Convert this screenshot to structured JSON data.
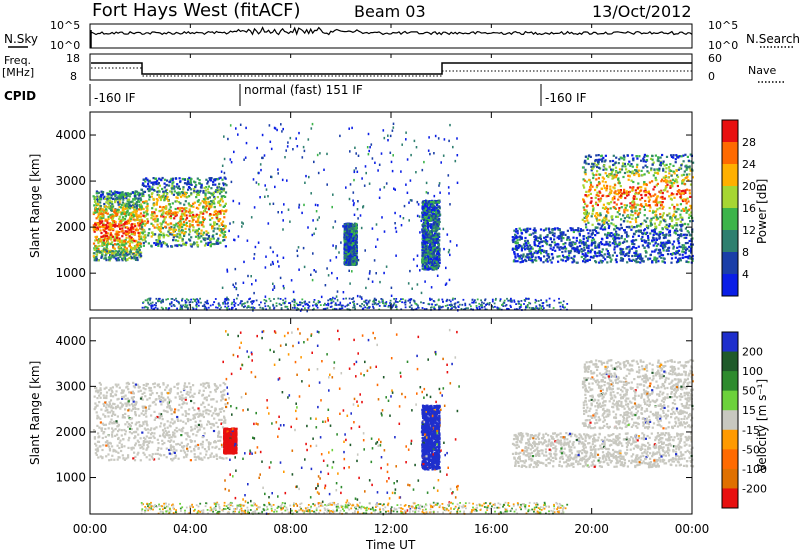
{
  "header": {
    "station": "Fort Hays West (fitACF)",
    "beam": "Beam 03",
    "date": "13/Oct/2012"
  },
  "labels": {
    "nsky": "N.Sky",
    "nsearch": "N.Search",
    "freq": "Freq.",
    "freq_unit": "[MHz]",
    "nave": "Nave",
    "cpid": "CPID",
    "ylabel": "Slant Range [km]",
    "xlabel": "Time UT",
    "power_label": "Power [dB]",
    "velocity_label": "Velocity [m s⁻¹]"
  },
  "cpid_segments": [
    "-160 IF",
    "normal (fast) 151 IF",
    "-160 IF"
  ],
  "ticks": {
    "noise_left": [
      "10^5",
      "10^0"
    ],
    "noise_right": [
      "10^5",
      "10^0"
    ],
    "freq_left": [
      "18",
      "8"
    ],
    "nave_right": [
      "60",
      "0"
    ]
  },
  "chart_data": [
    {
      "type": "heatmap",
      "name": "power",
      "title": "Power [dB]",
      "xlabel": "Time UT",
      "ylabel": "Slant Range [km]",
      "x_ticks": [
        "00:00",
        "04:00",
        "08:00",
        "12:00",
        "16:00",
        "20:00",
        "00:00"
      ],
      "y_ticks": [
        1000,
        2000,
        3000,
        4000
      ],
      "xlim_hours": [
        0,
        24
      ],
      "ylim_km": [
        200,
        4500
      ],
      "colorbar_ticks": [
        4,
        8,
        12,
        16,
        20,
        24,
        28
      ],
      "colors": [
        "#0a1ee6",
        "#1b3fa8",
        "#2f7f6f",
        "#3cb44a",
        "#a6d633",
        "#ffb000",
        "#ff6a00",
        "#e81010"
      ],
      "echo_regions": [
        {
          "t": [
            0.1,
            2.0
          ],
          "r": [
            1300,
            2800
          ],
          "intensity": 0.9
        },
        {
          "t": [
            2.0,
            5.4
          ],
          "r": [
            1600,
            3100
          ],
          "intensity": 0.75
        },
        {
          "t": [
            10.1,
            10.6
          ],
          "r": [
            1200,
            2100
          ],
          "intensity": 0.4
        },
        {
          "t": [
            13.2,
            13.9
          ],
          "r": [
            1100,
            2600
          ],
          "intensity": 0.4
        },
        {
          "t": [
            16.8,
            24.0
          ],
          "r": [
            1250,
            2000
          ],
          "intensity": 0.3
        },
        {
          "t": [
            19.6,
            24.0
          ],
          "r": [
            2000,
            3600
          ],
          "intensity": 0.85
        }
      ]
    },
    {
      "type": "heatmap",
      "name": "velocity",
      "title": "Velocity [m s⁻¹]",
      "xlabel": "Time UT",
      "ylabel": "Slant Range [km]",
      "x_ticks": [
        "00:00",
        "04:00",
        "08:00",
        "12:00",
        "16:00",
        "20:00",
        "00:00"
      ],
      "y_ticks": [
        1000,
        2000,
        3000,
        4000
      ],
      "xlim_hours": [
        0,
        24
      ],
      "ylim_km": [
        200,
        4500
      ],
      "colorbar_ticks": [
        200,
        100,
        50,
        15,
        -15,
        -50,
        -100,
        -200
      ],
      "colors": [
        "#1f2fcc",
        "#1f5a2a",
        "#2e8b2e",
        "#6cd23b",
        "#c8c8c0",
        "#ff9a00",
        "#ff6a00",
        "#e07000",
        "#e81010"
      ],
      "echo_regions": [
        {
          "t": [
            0.1,
            5.4
          ],
          "r": [
            1400,
            3100
          ],
          "velocity": 0
        },
        {
          "t": [
            5.3,
            5.8
          ],
          "r": [
            1550,
            2100
          ],
          "velocity": -200
        },
        {
          "t": [
            13.2,
            13.9
          ],
          "r": [
            1200,
            2600
          ],
          "velocity": 200
        },
        {
          "t": [
            16.8,
            24.0
          ],
          "r": [
            1250,
            2000
          ],
          "velocity": 0
        },
        {
          "t": [
            19.6,
            24.0
          ],
          "r": [
            2100,
            3600
          ],
          "velocity": 0
        }
      ]
    }
  ]
}
